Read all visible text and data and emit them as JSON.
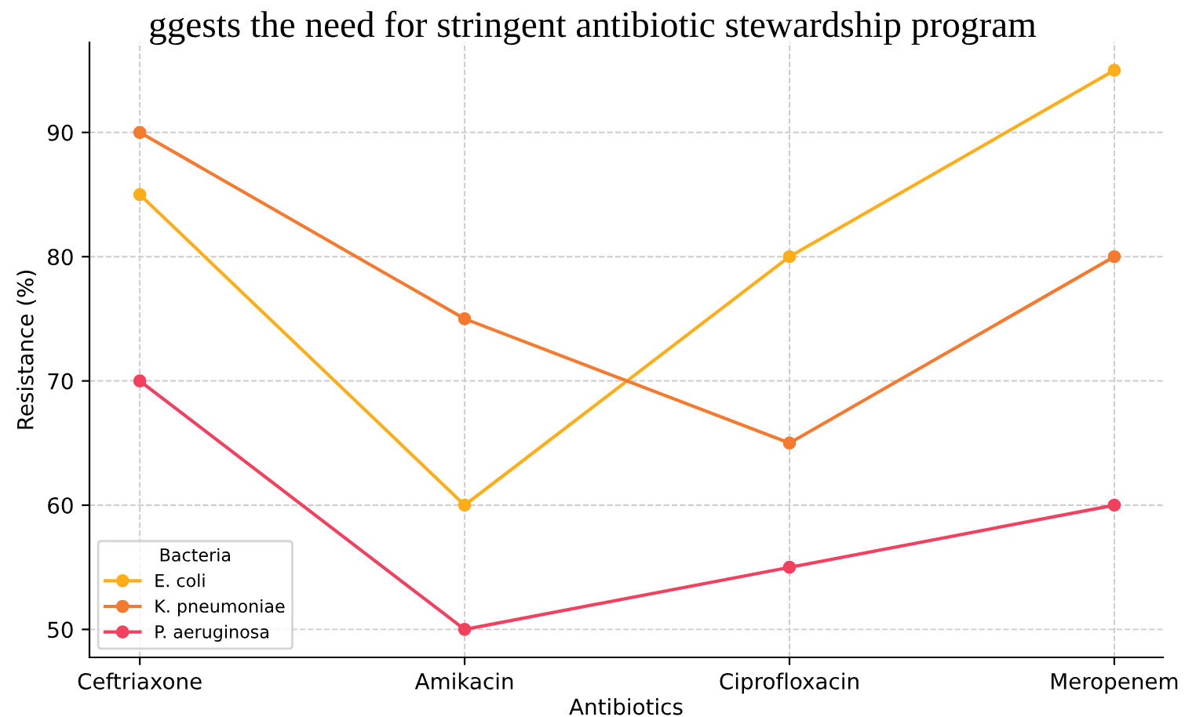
{
  "chart_data": {
    "type": "line",
    "title": "ggests the need for stringent antibiotic stewardship program",
    "xlabel": "Antibiotics",
    "ylabel": "Resistance (%)",
    "legend_title": "Bacteria",
    "categories": [
      "Ceftriaxone",
      "Amikacin",
      "Ciprofloxacin",
      "Meropenem"
    ],
    "series": [
      {
        "name": "E. coli",
        "color": "#ffae1a",
        "values": [
          85,
          60,
          80,
          95
        ]
      },
      {
        "name": "K. pneumoniae",
        "color": "#f47a30",
        "values": [
          90,
          75,
          65,
          80
        ]
      },
      {
        "name": "P. aeruginosa",
        "color": "#f2405f",
        "values": [
          70,
          50,
          55,
          60
        ]
      }
    ],
    "ylim": [
      47.75,
      97.25
    ],
    "yticks": [
      50,
      60,
      70,
      80,
      90
    ],
    "grid": true,
    "legend": "bottom left",
    "marker": "circle",
    "line_style": "solid"
  }
}
